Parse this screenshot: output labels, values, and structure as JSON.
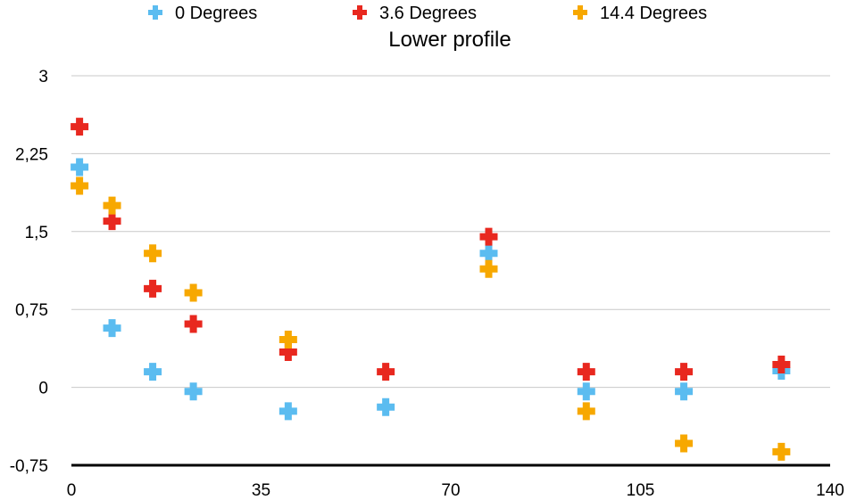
{
  "chart_data": {
    "type": "scatter",
    "title": "Lower profile",
    "xlabel": "",
    "ylabel": "",
    "xlim": [
      0,
      140
    ],
    "ylim": [
      -0.75,
      3
    ],
    "x_ticks": [
      0,
      35,
      70,
      105,
      140
    ],
    "y_ticks": [
      -0.75,
      0,
      0.75,
      1.5,
      2.25,
      3
    ],
    "x_tick_labels": [
      "0",
      "35",
      "70",
      "105",
      "140"
    ],
    "y_tick_labels": [
      "-0,75",
      "0",
      "0,75",
      "1,5",
      "2,25",
      "3"
    ],
    "grid": "horizontal",
    "legend_position": "top",
    "marker": "plus",
    "series": [
      {
        "name": "0 Degrees",
        "color": "#5bbcf0",
        "points": [
          [
            1.5,
            2.12
          ],
          [
            7.5,
            0.57
          ],
          [
            15,
            0.15
          ],
          [
            22.5,
            -0.04
          ],
          [
            40,
            -0.23
          ],
          [
            58,
            -0.19
          ],
          [
            77,
            1.29
          ],
          [
            95,
            -0.04
          ],
          [
            113,
            -0.04
          ],
          [
            131,
            0.16
          ]
        ]
      },
      {
        "name": "3.6 Degrees",
        "color": "#e8281f",
        "points": [
          [
            1.5,
            2.51
          ],
          [
            7.5,
            1.6
          ],
          [
            15,
            0.95
          ],
          [
            22.5,
            0.61
          ],
          [
            40,
            0.34
          ],
          [
            58,
            0.15
          ],
          [
            77,
            1.45
          ],
          [
            95,
            0.15
          ],
          [
            113,
            0.15
          ],
          [
            131,
            0.22
          ]
        ]
      },
      {
        "name": "14.4 Degrees",
        "color": "#f7a800",
        "points": [
          [
            1.5,
            1.94
          ],
          [
            7.5,
            1.75
          ],
          [
            15,
            1.29
          ],
          [
            22.5,
            0.91
          ],
          [
            40,
            0.46
          ],
          [
            77,
            1.14
          ],
          [
            95,
            -0.23
          ],
          [
            113,
            -0.54
          ],
          [
            131,
            -0.62
          ]
        ]
      }
    ]
  }
}
